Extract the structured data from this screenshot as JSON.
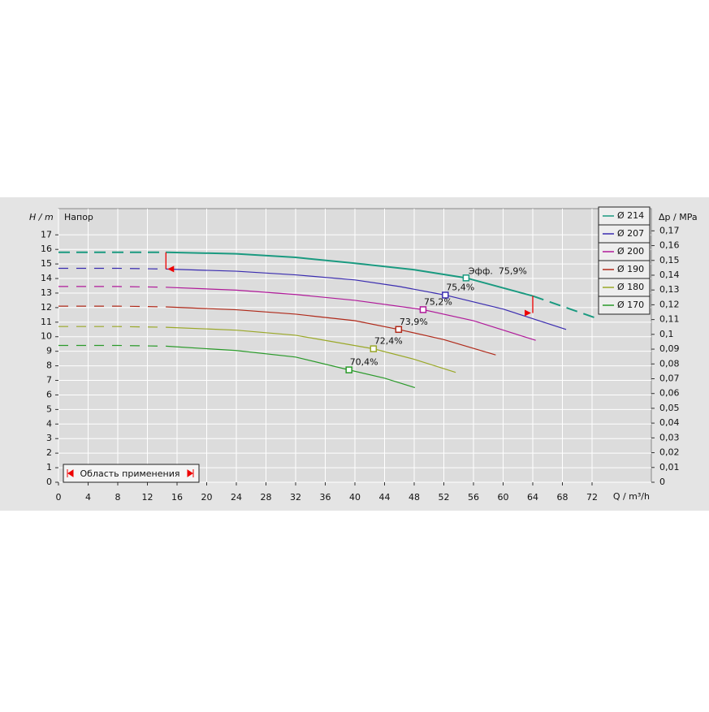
{
  "chart_data": {
    "type": "line",
    "y_label": "H / m",
    "y_caption": "Напор",
    "y2_label": "Δp / MPa",
    "x_label": "Q / m³/h",
    "xlim": [
      0,
      80
    ],
    "ylim": [
      0,
      18.8
    ],
    "y2lim": [
      0,
      0.185
    ],
    "xticks": [
      0,
      4,
      8,
      12,
      16,
      20,
      24,
      28,
      32,
      36,
      40,
      44,
      48,
      52,
      56,
      60,
      64,
      68,
      72
    ],
    "yticks": [
      0,
      1,
      2,
      3,
      4,
      5,
      6,
      7,
      8,
      9,
      10,
      11,
      12,
      13,
      14,
      15,
      16,
      17
    ],
    "y2ticks": [
      0,
      {
        "value": 0.01,
        "label": "0,01"
      },
      {
        "value": 0.02,
        "label": "0,02"
      },
      {
        "value": 0.03,
        "label": "0,03"
      },
      {
        "value": 0.04,
        "label": "0,04"
      },
      {
        "value": 0.05,
        "label": "0,05"
      },
      {
        "value": 0.06,
        "label": "0,06"
      },
      {
        "value": 0.07,
        "label": "0,07"
      },
      {
        "value": 0.08,
        "label": "0,08"
      },
      {
        "value": 0.09,
        "label": "0,09"
      },
      {
        "value": 0.1,
        "label": "0,1"
      },
      {
        "value": 0.11,
        "label": "0,11"
      },
      {
        "value": 0.12,
        "label": "0,12"
      },
      {
        "value": 0.13,
        "label": "0,13"
      },
      {
        "value": 0.14,
        "label": "0,14"
      },
      {
        "value": 0.15,
        "label": "0,15"
      },
      {
        "value": 0.16,
        "label": "0,16"
      },
      {
        "value": 0.17,
        "label": "0,17"
      }
    ],
    "grid": true,
    "legend": "top-right",
    "application_range": {
      "label": "Область применения",
      "xmin": 14.5,
      "xmax": 64
    },
    "bep_caption": "Эфф.",
    "series": [
      {
        "name": "Ø 214",
        "color": "#1a9a80",
        "dashed_beyond_range": true,
        "x": [
          0,
          8,
          14.5,
          24,
          32,
          40,
          48,
          55,
          64,
          72.7
        ],
        "values": [
          15.8,
          15.8,
          15.8,
          15.7,
          15.45,
          15.05,
          14.6,
          14.04,
          12.8,
          11.25
        ],
        "bep": {
          "x": 55,
          "y": 14.04,
          "efficiency": 75.9,
          "efficiency_label": "75,9%"
        }
      },
      {
        "name": "Ø 207",
        "color": "#3a2cb0",
        "x": [
          0,
          8,
          14.5,
          24,
          32,
          40,
          46,
          52.2,
          60,
          68.5
        ],
        "values": [
          14.7,
          14.7,
          14.65,
          14.5,
          14.25,
          13.9,
          13.45,
          12.86,
          11.9,
          10.5
        ],
        "bep": {
          "x": 52.2,
          "y": 12.86,
          "efficiency": 75.4,
          "efficiency_label": "75,4%"
        }
      },
      {
        "name": "Ø 200",
        "color": "#b01a9a",
        "x": [
          0,
          8,
          14.5,
          24,
          32,
          40,
          49.2,
          56,
          64.4
        ],
        "values": [
          13.45,
          13.45,
          13.4,
          13.2,
          12.9,
          12.5,
          11.86,
          11.1,
          9.75
        ],
        "bep": {
          "x": 49.2,
          "y": 11.86,
          "efficiency": 75.2,
          "efficiency_label": "75,2%"
        }
      },
      {
        "name": "Ø 190",
        "color": "#b02a1a",
        "x": [
          0,
          8,
          14.5,
          24,
          32,
          40,
          45.9,
          52,
          59
        ],
        "values": [
          12.1,
          12.1,
          12.05,
          11.85,
          11.55,
          11.1,
          10.5,
          9.8,
          8.75
        ],
        "bep": {
          "x": 45.9,
          "y": 10.5,
          "efficiency": 73.9,
          "efficiency_label": "73,9%"
        }
      },
      {
        "name": "Ø 180",
        "color": "#9aa828",
        "x": [
          0,
          8,
          14.5,
          24,
          32,
          42.5,
          48,
          53.6
        ],
        "values": [
          10.7,
          10.7,
          10.65,
          10.45,
          10.1,
          9.17,
          8.45,
          7.55
        ],
        "bep": {
          "x": 42.5,
          "y": 9.17,
          "efficiency": 72.4,
          "efficiency_label": "72,4%"
        }
      },
      {
        "name": "Ø 170",
        "color": "#2a9a2a",
        "x": [
          0,
          8,
          14.5,
          24,
          32,
          39.2,
          44,
          48.1
        ],
        "values": [
          9.4,
          9.4,
          9.35,
          9.05,
          8.6,
          7.72,
          7.15,
          6.5
        ],
        "bep": {
          "x": 39.2,
          "y": 7.72,
          "efficiency": 70.4,
          "efficiency_label": "70,4%"
        }
      }
    ]
  }
}
